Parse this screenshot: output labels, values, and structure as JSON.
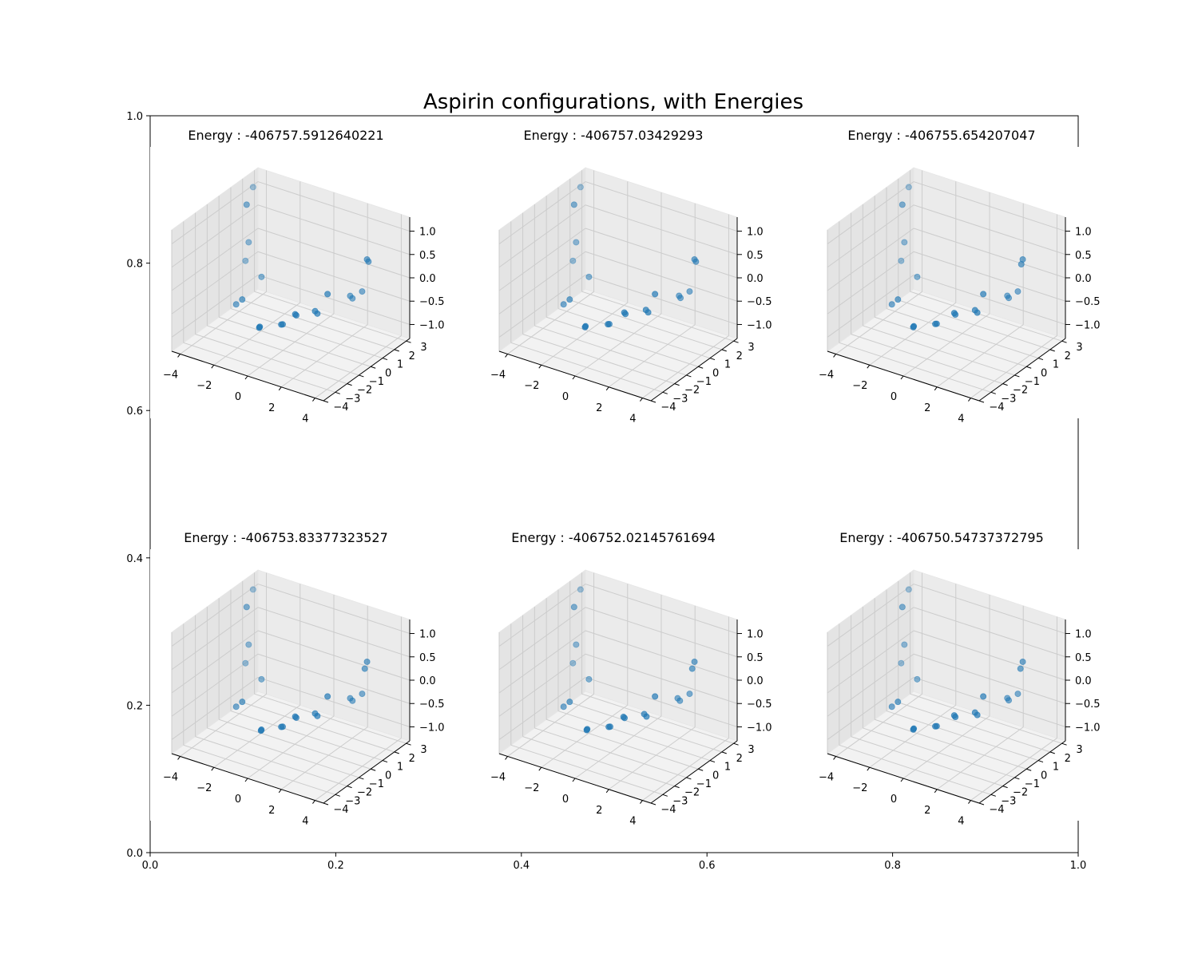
{
  "figure": {
    "title": "Aspirin configurations, with Energies"
  },
  "chart_data": {
    "type": "scatter",
    "title": "Aspirin configurations, with Energies",
    "outer_axes": {
      "xlim": [
        0.0,
        1.0
      ],
      "ylim": [
        0.0,
        1.0
      ],
      "x_tick_labels": [
        "0.0",
        "0.2",
        "0.4",
        "0.6",
        "0.8",
        "1.0"
      ],
      "y_tick_labels": [
        "0.0",
        "0.2",
        "0.4",
        "0.6",
        "0.8",
        "1.0"
      ]
    },
    "axes3d": {
      "x_tick_labels": [
        "−4",
        "−2",
        "0",
        "2",
        "4"
      ],
      "y_tick_labels": [
        "−4",
        "−3",
        "−2",
        "−1",
        "0",
        "1",
        "2",
        "3"
      ],
      "z_tick_labels": [
        "−1.0",
        "−0.5",
        "0.0",
        "0.5",
        "1.0"
      ],
      "xlim": [
        -4.5,
        4.5
      ],
      "ylim": [
        -4,
        3.3
      ],
      "zlim": [
        -1.3,
        1.3
      ],
      "pane_color": "#f2f2f2",
      "grid_color": "#cccccc",
      "marker_color": "#1f77b4",
      "grid": true
    },
    "panels": [
      {
        "title": "Energy : -406757.5912640221",
        "points": [
          [
            -3.0,
            0.2,
            1.25
          ],
          [
            -3.6,
            1.6,
            1.3
          ],
          [
            -3.3,
            0.8,
            0.3
          ],
          [
            -3.7,
            1.1,
            -0.2
          ],
          [
            -2.4,
            0.6,
            -0.3
          ],
          [
            -2.7,
            -0.6,
            -0.6
          ],
          [
            -1.2,
            -1.3,
            -0.9
          ],
          [
            -0.3,
            -0.6,
            -0.85
          ],
          [
            -0.35,
            -0.65,
            -0.85
          ],
          [
            0.3,
            -0.4,
            -0.6
          ],
          [
            1.2,
            0.0,
            -0.5
          ],
          [
            1.3,
            0.05,
            -0.55
          ],
          [
            2.3,
            1.4,
            -0.3
          ],
          [
            2.4,
            1.45,
            -0.35
          ],
          [
            2.8,
            1.7,
            -0.2
          ],
          [
            1.8,
            0.2,
            -0.1
          ],
          [
            3.3,
            1.4,
            0.6
          ],
          [
            3.35,
            1.45,
            0.55
          ],
          [
            -1.1,
            -1.4,
            -0.85
          ],
          [
            0.35,
            -0.38,
            -0.62
          ],
          [
            -3.2,
            -0.4,
            -0.8
          ]
        ]
      },
      {
        "title": "Energy : -406757.03429293",
        "points": [
          [
            -3.0,
            0.2,
            1.25
          ],
          [
            -3.6,
            1.6,
            1.3
          ],
          [
            -3.3,
            0.8,
            0.3
          ],
          [
            -3.7,
            1.1,
            -0.2
          ],
          [
            -2.4,
            0.6,
            -0.3
          ],
          [
            -2.7,
            -0.6,
            -0.6
          ],
          [
            -1.3,
            -1.3,
            -0.9
          ],
          [
            -0.35,
            -0.6,
            -0.85
          ],
          [
            -0.4,
            -0.65,
            -0.85
          ],
          [
            0.4,
            -0.4,
            -0.55
          ],
          [
            1.4,
            0.0,
            -0.45
          ],
          [
            1.5,
            0.05,
            -0.5
          ],
          [
            2.35,
            1.45,
            -0.3
          ],
          [
            2.4,
            1.5,
            -0.35
          ],
          [
            2.8,
            1.7,
            -0.2
          ],
          [
            1.8,
            0.2,
            -0.1
          ],
          [
            3.3,
            1.4,
            0.6
          ],
          [
            3.35,
            1.45,
            0.55
          ],
          [
            -1.2,
            -1.4,
            -0.85
          ],
          [
            0.45,
            -0.38,
            -0.58
          ],
          [
            -3.2,
            -0.4,
            -0.8
          ]
        ]
      },
      {
        "title": "Energy : -406755.654207047",
        "points": [
          [
            -3.0,
            0.2,
            1.25
          ],
          [
            -3.6,
            1.6,
            1.3
          ],
          [
            -3.3,
            0.8,
            0.3
          ],
          [
            -3.7,
            1.1,
            -0.2
          ],
          [
            -2.4,
            0.6,
            -0.3
          ],
          [
            -2.7,
            -0.6,
            -0.6
          ],
          [
            -1.3,
            -1.3,
            -0.9
          ],
          [
            -0.4,
            -0.6,
            -0.85
          ],
          [
            -0.45,
            -0.65,
            -0.85
          ],
          [
            0.5,
            -0.4,
            -0.55
          ],
          [
            1.45,
            0.0,
            -0.45
          ],
          [
            1.55,
            0.05,
            -0.5
          ],
          [
            2.35,
            1.45,
            -0.3
          ],
          [
            2.4,
            1.5,
            -0.35
          ],
          [
            2.8,
            1.7,
            -0.2
          ],
          [
            1.8,
            0.2,
            -0.1
          ],
          [
            3.3,
            1.4,
            0.6
          ],
          [
            3.25,
            1.35,
            0.5
          ],
          [
            -1.2,
            -1.4,
            -0.85
          ],
          [
            0.55,
            -0.38,
            -0.58
          ],
          [
            -3.2,
            -0.4,
            -0.8
          ]
        ]
      },
      {
        "title": "Energy : -406753.83377323527",
        "points": [
          [
            -3.0,
            0.2,
            1.25
          ],
          [
            -3.6,
            1.6,
            1.3
          ],
          [
            -3.3,
            0.8,
            0.3
          ],
          [
            -3.7,
            1.1,
            -0.2
          ],
          [
            -2.4,
            0.6,
            -0.3
          ],
          [
            -2.7,
            -0.6,
            -0.6
          ],
          [
            -1.1,
            -1.3,
            -0.9
          ],
          [
            -0.3,
            -0.6,
            -0.85
          ],
          [
            -0.35,
            -0.65,
            -0.85
          ],
          [
            0.3,
            -0.4,
            -0.6
          ],
          [
            1.2,
            0.0,
            -0.5
          ],
          [
            1.3,
            0.05,
            -0.55
          ],
          [
            2.3,
            1.4,
            -0.3
          ],
          [
            2.4,
            1.45,
            -0.35
          ],
          [
            2.8,
            1.7,
            -0.2
          ],
          [
            1.8,
            0.2,
            -0.1
          ],
          [
            3.3,
            1.4,
            0.6
          ],
          [
            3.2,
            1.35,
            0.45
          ],
          [
            -1.0,
            -1.4,
            -0.85
          ],
          [
            0.35,
            -0.38,
            -0.62
          ],
          [
            -3.2,
            -0.4,
            -0.8
          ]
        ]
      },
      {
        "title": "Energy : -406752.02145761694",
        "points": [
          [
            -3.0,
            0.2,
            1.25
          ],
          [
            -3.6,
            1.6,
            1.3
          ],
          [
            -3.3,
            0.8,
            0.3
          ],
          [
            -3.7,
            1.1,
            -0.2
          ],
          [
            -2.4,
            0.6,
            -0.3
          ],
          [
            -2.7,
            -0.6,
            -0.6
          ],
          [
            -1.2,
            -1.3,
            -0.9
          ],
          [
            -0.3,
            -0.6,
            -0.85
          ],
          [
            -0.35,
            -0.65,
            -0.85
          ],
          [
            0.35,
            -0.4,
            -0.6
          ],
          [
            1.3,
            0.0,
            -0.5
          ],
          [
            1.4,
            0.05,
            -0.55
          ],
          [
            2.3,
            1.4,
            -0.3
          ],
          [
            2.4,
            1.45,
            -0.35
          ],
          [
            2.8,
            1.7,
            -0.2
          ],
          [
            1.8,
            0.2,
            -0.1
          ],
          [
            3.3,
            1.4,
            0.6
          ],
          [
            3.2,
            1.35,
            0.45
          ],
          [
            -1.1,
            -1.4,
            -0.85
          ],
          [
            0.4,
            -0.38,
            -0.62
          ],
          [
            -3.2,
            -0.4,
            -0.8
          ]
        ]
      },
      {
        "title": "Energy : -406750.54737372795",
        "points": [
          [
            -3.0,
            0.2,
            1.25
          ],
          [
            -3.6,
            1.6,
            1.3
          ],
          [
            -3.3,
            0.8,
            0.3
          ],
          [
            -3.7,
            1.1,
            -0.2
          ],
          [
            -2.4,
            0.6,
            -0.3
          ],
          [
            -2.7,
            -0.6,
            -0.6
          ],
          [
            -1.3,
            -1.3,
            -0.9
          ],
          [
            -0.4,
            -0.6,
            -0.85
          ],
          [
            -0.45,
            -0.65,
            -0.85
          ],
          [
            0.5,
            -0.4,
            -0.55
          ],
          [
            1.45,
            0.0,
            -0.45
          ],
          [
            1.55,
            0.05,
            -0.5
          ],
          [
            2.35,
            1.45,
            -0.3
          ],
          [
            2.4,
            1.5,
            -0.35
          ],
          [
            2.8,
            1.7,
            -0.2
          ],
          [
            1.8,
            0.2,
            -0.1
          ],
          [
            3.3,
            1.4,
            0.6
          ],
          [
            3.2,
            1.35,
            0.45
          ],
          [
            -1.2,
            -1.4,
            -0.85
          ],
          [
            0.55,
            -0.38,
            -0.58
          ],
          [
            -3.2,
            -0.4,
            -0.8
          ]
        ]
      }
    ]
  }
}
